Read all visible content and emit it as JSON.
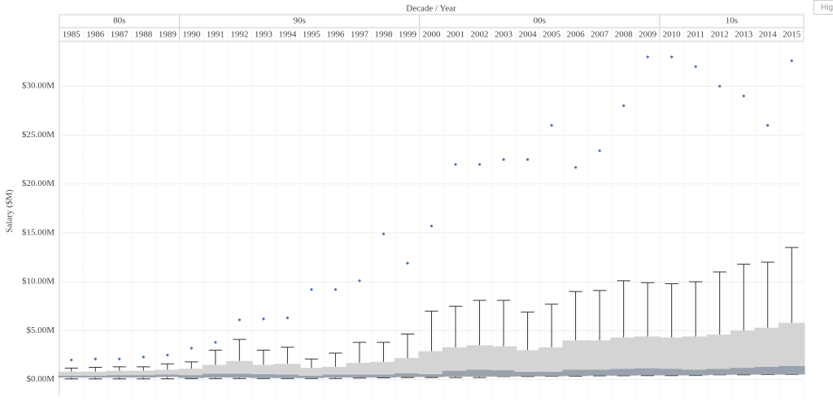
{
  "ui": {
    "highlight_placeholder": "Hig"
  },
  "chart_data": {
    "type": "boxplot",
    "header": "Decade  /  Year",
    "y_label": "Salary ($M)",
    "decades": [
      "80s",
      "90s",
      "00s",
      "10s"
    ],
    "categories": [
      "1985",
      "1986",
      "1987",
      "1988",
      "1989",
      "1990",
      "1991",
      "1992",
      "1993",
      "1994",
      "1995",
      "1996",
      "1997",
      "1998",
      "1999",
      "2000",
      "2001",
      "2002",
      "2003",
      "2004",
      "2005",
      "2006",
      "2007",
      "2008",
      "2009",
      "2010",
      "2011",
      "2012",
      "2013",
      "2014",
      "2015"
    ],
    "whisker_low": [
      0.06,
      0.06,
      0.06,
      0.06,
      0.07,
      0.1,
      0.1,
      0.11,
      0.11,
      0.11,
      0.11,
      0.11,
      0.15,
      0.17,
      0.2,
      0.2,
      0.2,
      0.2,
      0.3,
      0.3,
      0.32,
      0.33,
      0.38,
      0.39,
      0.4,
      0.4,
      0.41,
      0.48,
      0.48,
      0.5,
      0.51
    ],
    "q1": [
      0.2,
      0.2,
      0.2,
      0.2,
      0.25,
      0.15,
      0.2,
      0.2,
      0.15,
      0.15,
      0.15,
      0.2,
      0.2,
      0.2,
      0.25,
      0.25,
      0.3,
      0.3,
      0.3,
      0.32,
      0.33,
      0.35,
      0.4,
      0.4,
      0.42,
      0.42,
      0.42,
      0.48,
      0.5,
      0.5,
      0.51
    ],
    "median": [
      0.4,
      0.4,
      0.45,
      0.45,
      0.5,
      0.45,
      0.6,
      0.6,
      0.55,
      0.5,
      0.4,
      0.5,
      0.5,
      0.5,
      0.65,
      0.55,
      0.9,
      1.0,
      0.95,
      0.8,
      0.8,
      1.0,
      1.0,
      1.1,
      1.15,
      1.1,
      1.0,
      1.1,
      1.2,
      1.3,
      1.4
    ],
    "q3": [
      0.8,
      0.8,
      0.9,
      0.9,
      1.0,
      1.1,
      1.5,
      1.9,
      1.5,
      1.6,
      1.2,
      1.3,
      1.7,
      1.8,
      2.2,
      2.9,
      3.3,
      3.5,
      3.4,
      3.0,
      3.3,
      4.0,
      4.0,
      4.3,
      4.4,
      4.3,
      4.4,
      4.6,
      5.0,
      5.3,
      5.8
    ],
    "whisker_high": [
      1.16,
      1.25,
      1.3,
      1.3,
      1.6,
      1.8,
      3.0,
      4.1,
      3.0,
      3.3,
      2.1,
      2.7,
      3.8,
      3.8,
      4.65,
      7.0,
      7.5,
      8.1,
      8.1,
      6.9,
      7.7,
      9.0,
      9.1,
      10.1,
      9.9,
      9.8,
      10.0,
      11.0,
      11.8,
      12.0,
      13.5
    ],
    "max": [
      2.0,
      2.1,
      2.1,
      2.3,
      2.5,
      3.2,
      3.8,
      6.1,
      6.2,
      6.3,
      9.2,
      9.2,
      10.1,
      14.9,
      11.9,
      15.7,
      22.0,
      22.0,
      22.5,
      22.5,
      26.0,
      21.7,
      23.4,
      28.0,
      33.0,
      33.0,
      32.0,
      30.0,
      29.0,
      26.0,
      32.6
    ],
    "point_color": "#4e79a7",
    "box_color": "#d4d4d4",
    "ylim": [
      -1.7,
      34.5
    ],
    "yticks": [
      {
        "value": 0,
        "label": "$0.00M"
      },
      {
        "value": 5,
        "label": "$5.00M"
      },
      {
        "value": 10,
        "label": "$10.00M"
      },
      {
        "value": 15,
        "label": "$15.00M"
      },
      {
        "value": 20,
        "label": "$20.00M"
      },
      {
        "value": 25,
        "label": "$25.00M"
      },
      {
        "value": 30,
        "label": "$30.00M"
      }
    ],
    "grid": true
  }
}
